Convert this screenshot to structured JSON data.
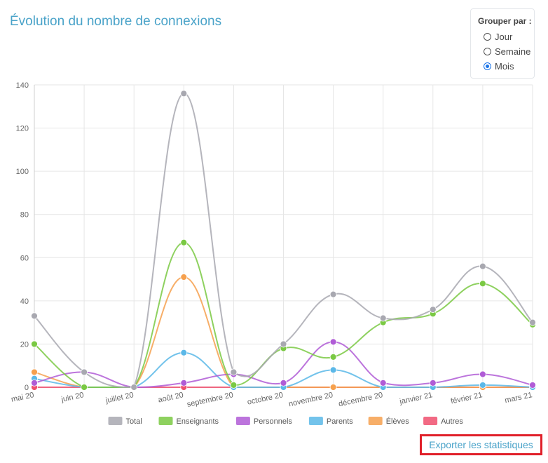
{
  "page": {
    "title": "Évolution du nombre de connexions"
  },
  "group_by": {
    "label": "Grouper par :",
    "options": [
      {
        "label": "Jour",
        "selected": false
      },
      {
        "label": "Semaine",
        "selected": false
      },
      {
        "label": "Mois",
        "selected": true
      }
    ]
  },
  "export_label": "Exporter les statistiques",
  "chart_data": {
    "type": "line",
    "title": "",
    "xlabel": "",
    "ylabel": "",
    "ylim": [
      0,
      140
    ],
    "yticks": [
      0,
      20,
      40,
      60,
      80,
      100,
      120,
      140
    ],
    "grid": true,
    "legend_position": "bottom",
    "categories": [
      "mai 20",
      "juin 20",
      "juillet 20",
      "août 20",
      "septembre 20",
      "octobre 20",
      "novembre 20",
      "décembre 20",
      "janvier 21",
      "février 21",
      "mars 21"
    ],
    "series": [
      {
        "name": "Total",
        "color": "#a8a8b0",
        "values": [
          33,
          7,
          0,
          136,
          7,
          20,
          43,
          32,
          36,
          56,
          30
        ]
      },
      {
        "name": "Enseignants",
        "color": "#7ac943",
        "values": [
          20,
          0,
          0,
          67,
          1,
          18,
          14,
          30,
          34,
          48,
          29
        ]
      },
      {
        "name": "Personnels",
        "color": "#b05cd6",
        "values": [
          2,
          7,
          0,
          2,
          6,
          2,
          21,
          2,
          2,
          6,
          1
        ]
      },
      {
        "name": "Parents",
        "color": "#5bb8e8",
        "values": [
          4,
          0,
          0,
          16,
          0,
          0,
          8,
          0,
          0,
          1,
          0
        ]
      },
      {
        "name": "Élèves",
        "color": "#f6a04d",
        "values": [
          7,
          0,
          0,
          51,
          0,
          0,
          0,
          0,
          0,
          0,
          0
        ]
      },
      {
        "name": "Autres",
        "color": "#f0506e",
        "values": [
          0,
          0,
          0,
          0,
          0,
          0,
          0,
          0,
          0,
          0,
          0
        ]
      }
    ]
  }
}
